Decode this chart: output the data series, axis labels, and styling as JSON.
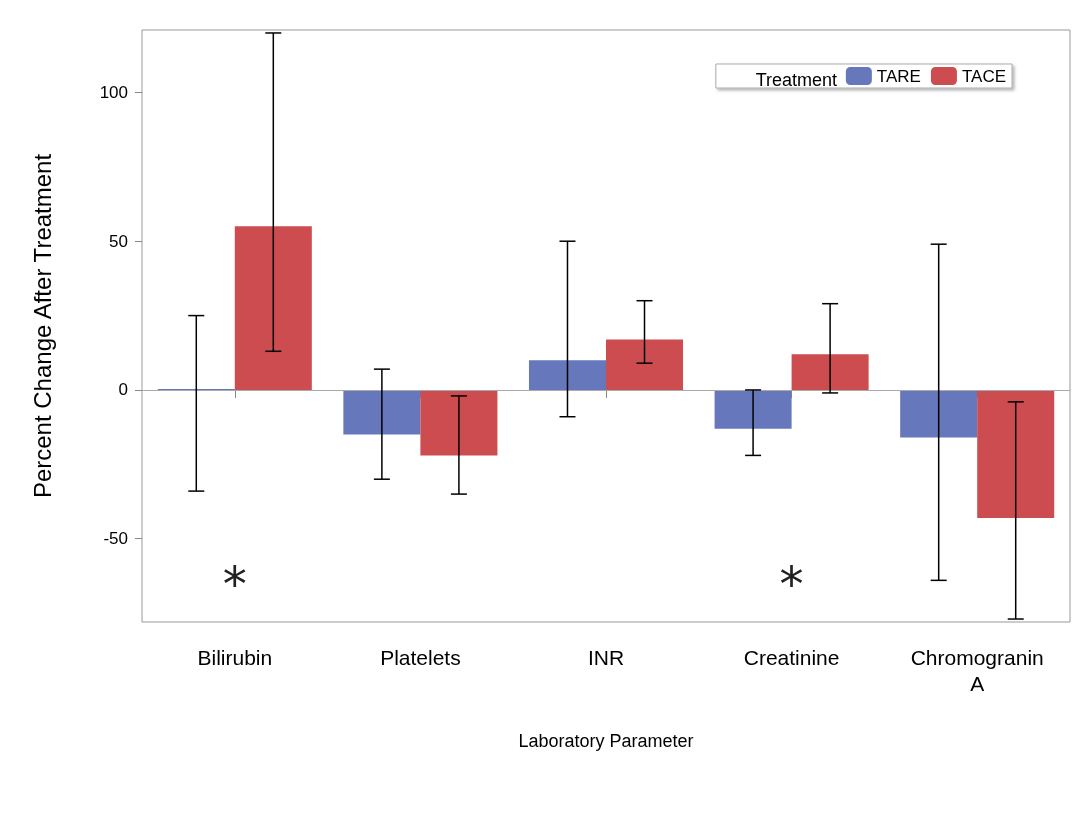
{
  "chart_data": {
    "type": "bar",
    "xlabel": "Laboratory Parameter",
    "ylabel": "Percent Change After Treatment",
    "legend_title": "Treatment",
    "categories": [
      "Bilirubin",
      "Platelets",
      "INR",
      "Creatinine",
      "Chromogranin A"
    ],
    "series": [
      {
        "name": "TARE",
        "color": "#6677bb",
        "values": [
          0,
          -15,
          10,
          -13,
          -16
        ],
        "errors": [
          [
            -34,
            25
          ],
          [
            -30,
            7
          ],
          [
            -9,
            50
          ],
          [
            -22,
            0
          ],
          [
            -64,
            49
          ]
        ]
      },
      {
        "name": "TACE",
        "color": "#cc4c4f",
        "values": [
          55,
          -22,
          17,
          12,
          -43
        ],
        "errors": [
          [
            13,
            120
          ],
          [
            -35,
            -2
          ],
          [
            9,
            30
          ],
          [
            -1,
            29
          ],
          [
            -77,
            -4
          ]
        ]
      }
    ],
    "ylim": [
      -78,
      121
    ],
    "yticks": [
      -50,
      0,
      50,
      100
    ],
    "ref_lines": [
      {
        "axis": "y",
        "value": 0,
        "color": "#aaaaaa"
      }
    ],
    "annotations": [
      "*",
      "*"
    ],
    "legend": "top right",
    "grid": false
  }
}
